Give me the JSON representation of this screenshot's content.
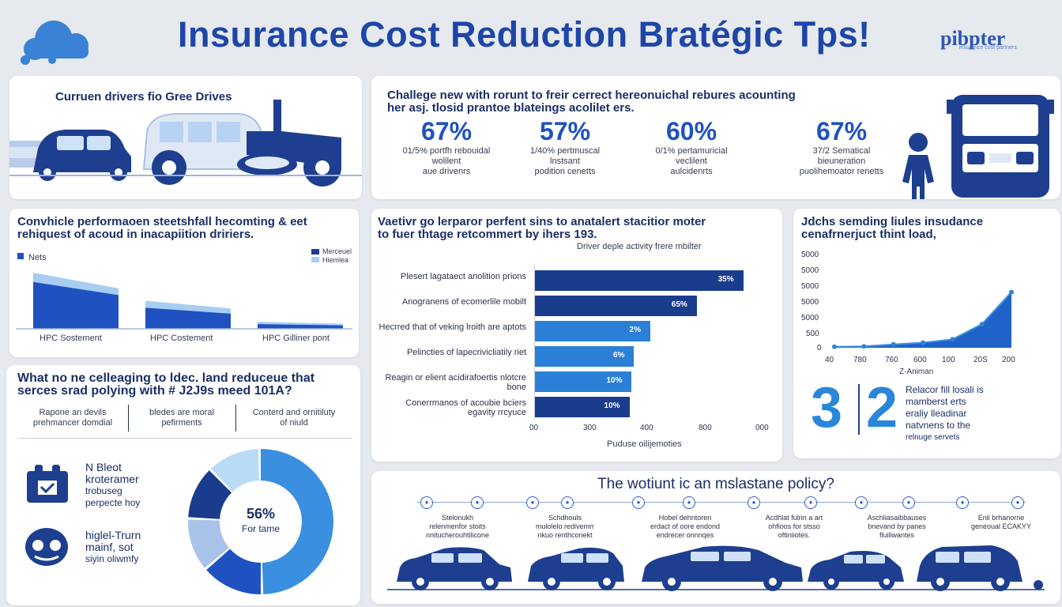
{
  "header": {
    "title": "Insurance Cost Reduction Bratégic Tps!",
    "logo_text": "pibpter",
    "logo_sub": "insurance cost partners"
  },
  "drivers_panel": {
    "title": "Curruen drivers fio Gree Drives"
  },
  "stats_panel": {
    "title_line1": "Challege new with rorunt to freir cerrect hereonuichal rebures acounting",
    "title_line2": "her asj. tlosid prantoe blateings acolilet ers.",
    "stats": [
      {
        "value": "67%",
        "desc1": "01/5% portfh rebouidal",
        "desc2": "wolilent",
        "desc3": "aue drivenrs"
      },
      {
        "value": "57%",
        "desc1": "1/40% pertmuscal",
        "desc2": "lnstsant",
        "desc3": "podition cenetts"
      },
      {
        "value": "60%",
        "desc1": "0/1% pertamuricial",
        "desc2": "veclilent",
        "desc3": "aulcidenrts"
      },
      {
        "value": "67%",
        "desc1": "37/2 Sematical",
        "desc2": "bieuneration",
        "desc3": "puolihemoator renetts"
      }
    ]
  },
  "perf_panel": {
    "title_line1": "Convhicle performaoen steetshfall hecomting & eet",
    "title_line2": "rehiquest of acoud in inacapiition dririers.",
    "legend_left": "Nets",
    "legend_right1": "Merceuel",
    "legend_right2": "Hiemlea",
    "cat_labels": [
      "HPC Sostement",
      "HPC Costement",
      "HPC Gilliner pont"
    ]
  },
  "bar_panel": {
    "title_line1": "Vaetivr go lerparor perfent sins to anatalert stacitior moter",
    "title_line2": "to fuer thtage retcommert by ihers 193.",
    "subtitle": "Driver deple activity frere mbilter",
    "xlabel": "Puduse oilijemoties",
    "xticks": [
      "00",
      "300",
      "400",
      "800",
      "000"
    ]
  },
  "line_panel": {
    "title_line1": "Jdchs semding liules insudance",
    "title_line2": "cenafrnerjuct thint load,",
    "yticks": [
      "5000",
      "5000",
      "5000",
      "5000",
      "5000",
      "500",
      "0"
    ],
    "xticks": [
      "40",
      "780",
      "760",
      "600",
      "100",
      "20S",
      "200"
    ],
    "xlabel": "Z-Animan",
    "big_num1": "3",
    "big_num2": "2",
    "side_text1": "Relacor fill losali is",
    "side_text2": "mamberst erts",
    "side_text3": "eraliy lleadinar",
    "side_text4": "natvnens to the",
    "side_text5": "relnuge servets"
  },
  "question_panel": {
    "title_line1": "What no ne celleaging to ldec. land reduceue that",
    "title_line2": "serces srad polying with # J2J9s meed 101A?",
    "cols": [
      {
        "l1": "Rapone an devils",
        "l2": "prehmancer domdial"
      },
      {
        "l1": "bledes are moral",
        "l2": "pefirments"
      },
      {
        "l1": "Conterd and ornitiluty",
        "l2": "of niuld"
      }
    ],
    "item1_l1": "N Bleot",
    "item1_l2": "kroteramer",
    "item1_l3": "trobuseg",
    "item1_l4": "perpecte hoy",
    "item2_l1": "higlel-Trurn",
    "item2_l2": "mainf, sot",
    "item2_l3": "siyin oliwmfy",
    "donut_value": "56%",
    "donut_label": "For tame"
  },
  "policy_panel": {
    "title": "The wotiunt ic an mslastane policy?",
    "steps": [
      {
        "l1": "Stelonukh",
        "l2": "relenmenfor stoits",
        "l3": "nnitucherouhtilicone"
      },
      {
        "l1": "Schdhouls",
        "l2": "mulolelo redivemrr",
        "l3": "nkuo renthconekt"
      },
      {
        "l1": "Hobel dehntoren",
        "l2": "erdact of oore endond",
        "l3": "endrecer onnnqes"
      },
      {
        "l1": "Acdhlat fulrin a art",
        "l2": "ohfioos for stsso",
        "l3": "oftiniiotes."
      },
      {
        "l1": "Aschliasaibbauses",
        "l2": "bnevand by panes",
        "l3": "fluiliwantes"
      },
      {
        "l1": "Enli brhanorne",
        "l2": "geneoual ECAKYY",
        "l3": ""
      }
    ]
  },
  "chart_data": [
    {
      "type": "bar",
      "orientation": "horizontal",
      "title": "Driver deple activity frere mbilter",
      "xlabel": "Puduse oilijemoties",
      "categories": [
        "Plesert lagataect anolition prions",
        "Anogranens of ecomerlile mobilt",
        "Hecrred that of veking lroith are aptots",
        "Pelincties of lapecrivicliatily riet",
        "Reagin or elient acidirafoertis nlotcre bone",
        "Conerrmanos of acoubie bciers egavity rrcyuce"
      ],
      "values": [
        900,
        700,
        500,
        430,
        420,
        410
      ],
      "value_labels": [
        "35%",
        "65%",
        "2%",
        "6%",
        "10%",
        "10%"
      ],
      "colors": [
        "#1a3c8c",
        "#1a3c8c",
        "#2b7fd6",
        "#2b7fd6",
        "#2b7fd6",
        "#1a3c8c"
      ],
      "xlim": [
        0,
        1000
      ]
    },
    {
      "type": "area",
      "x": [
        40,
        780,
        760,
        600,
        100,
        "20S",
        200
      ],
      "values": [
        60,
        80,
        200,
        300,
        500,
        1400,
        3300
      ],
      "ylim": [
        0,
        6000
      ],
      "xlabel": "Z-Animan"
    },
    {
      "type": "area",
      "categories": [
        "HPC Sostement",
        "HPC Costement",
        "HPC Gilliner pont"
      ],
      "series": [
        {
          "name": "Nets",
          "values": [
            100,
            45,
            10
          ],
          "color": "#1f52c0"
        },
        {
          "name": "Merceuel",
          "values": [
            120,
            60,
            15
          ],
          "color": "#a7cdf2"
        }
      ]
    },
    {
      "type": "pie",
      "style": "donut",
      "center_label": "56%",
      "values": [
        50,
        14,
        12,
        12,
        12
      ],
      "colors": [
        "#3a8fe0",
        "#1f52c0",
        "#a9c3e8",
        "#1a3c8c",
        "#b8dcf6"
      ]
    }
  ]
}
